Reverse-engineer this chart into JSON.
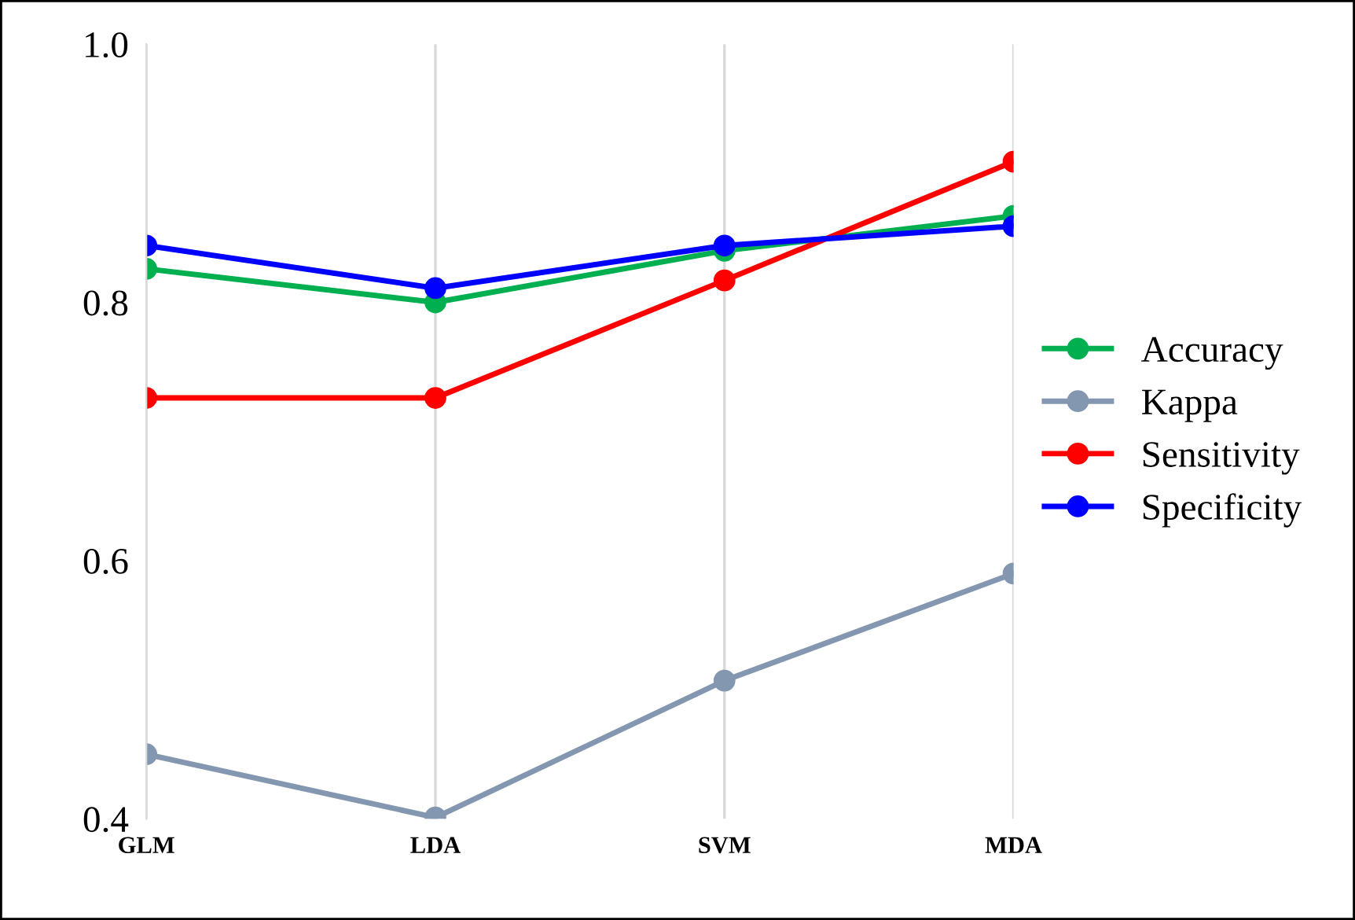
{
  "chart_data": {
    "type": "line",
    "categories": [
      "GLM",
      "LDA",
      "SVM",
      "MDA"
    ],
    "series": [
      {
        "name": "Accuracy",
        "color": "#00b050",
        "values": [
          0.826,
          0.8,
          0.84,
          0.867
        ]
      },
      {
        "name": "Kappa",
        "color": "#8497b0",
        "values": [
          0.45,
          0.401,
          0.507,
          0.59
        ]
      },
      {
        "name": "Sensitivity",
        "color": "#ff0000",
        "values": [
          0.726,
          0.726,
          0.817,
          0.909
        ]
      },
      {
        "name": "Specificity",
        "color": "#0000ff",
        "values": [
          0.844,
          0.811,
          0.844,
          0.859
        ]
      }
    ],
    "ylim": [
      0.4,
      1.0
    ],
    "yticks": [
      {
        "value": 0.4,
        "label": "0.4"
      },
      {
        "value": 0.6,
        "label": "0.6"
      },
      {
        "value": 0.8,
        "label": "0.8"
      },
      {
        "value": 1.0,
        "label": "1.0"
      }
    ],
    "grid": "x",
    "legend": "right",
    "marker": "circle",
    "line_style": "solid"
  }
}
